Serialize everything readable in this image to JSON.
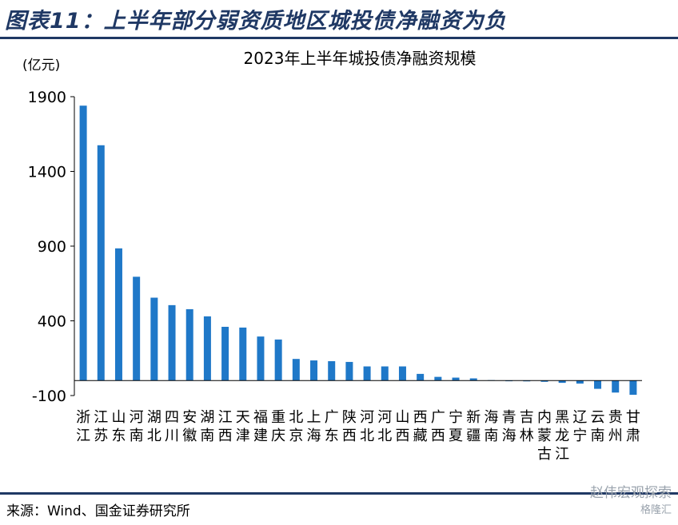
{
  "figure_title": "图表11：上半年部分弱资质地区城投债净融资为负",
  "source": "来源：Wind、国金证券研究所",
  "watermark": {
    "line1": "赵伟宏观探索",
    "line2": "格隆汇"
  },
  "colors": {
    "bar": "#1f78c8",
    "title": "#1f3864",
    "rule": "#1f3864"
  },
  "chart_data": {
    "type": "bar",
    "title": "2023年上半年城投债净融资规模",
    "unit_label": "(亿元)",
    "xlabel": "",
    "ylabel": "",
    "ylim": [
      -100,
      1900
    ],
    "yticks": [
      "1900",
      "1400",
      "900",
      "400",
      "-100"
    ],
    "ytick_values": [
      1900,
      1400,
      900,
      400,
      -100
    ],
    "grid": false,
    "legend": "none",
    "categories": [
      "浙江",
      "江苏",
      "山东",
      "河南",
      "湖北",
      "四川",
      "安徽",
      "湖南",
      "江西",
      "天津",
      "福建",
      "重庆",
      "北京",
      "上海",
      "广东",
      "陕西",
      "河北",
      "河北",
      "山西",
      "西藏",
      "广西",
      "宁夏",
      "新疆",
      "海南",
      "青海",
      "吉林",
      "内蒙古",
      "黑龙江",
      "辽宁",
      "云南",
      "贵州",
      "甘肃"
    ],
    "values": [
      1840,
      1575,
      885,
      695,
      555,
      505,
      478,
      430,
      360,
      355,
      295,
      275,
      145,
      135,
      130,
      125,
      95,
      95,
      95,
      45,
      25,
      20,
      15,
      3,
      -3,
      -5,
      -8,
      -15,
      -20,
      -55,
      -80,
      -95
    ]
  }
}
